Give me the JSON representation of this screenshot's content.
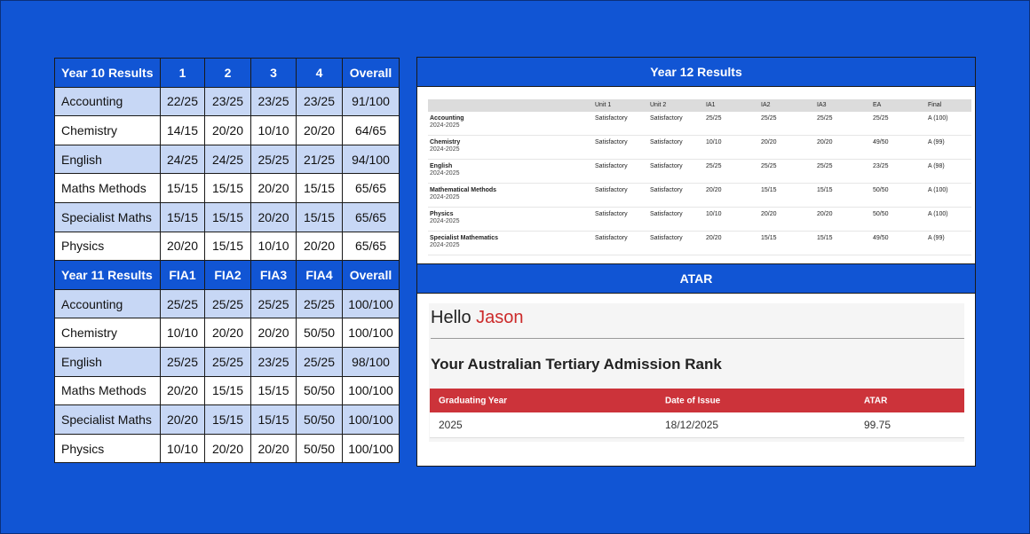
{
  "year10": {
    "header": [
      "Year 10 Results",
      "1",
      "2",
      "3",
      "4",
      "Overall"
    ],
    "rows": [
      [
        "Accounting",
        "22/25",
        "23/25",
        "23/25",
        "23/25",
        "91/100"
      ],
      [
        "Chemistry",
        "14/15",
        "20/20",
        "10/10",
        "20/20",
        "64/65"
      ],
      [
        "English",
        "24/25",
        "24/25",
        "25/25",
        "21/25",
        "94/100"
      ],
      [
        "Maths Methods",
        "15/15",
        "15/15",
        "20/20",
        "15/15",
        "65/65"
      ],
      [
        "Specialist Maths",
        "15/15",
        "15/15",
        "20/20",
        "15/15",
        "65/65"
      ],
      [
        "Physics",
        "20/20",
        "15/15",
        "10/10",
        "20/20",
        "65/65"
      ]
    ]
  },
  "year11": {
    "header": [
      "Year 11 Results",
      "FIA1",
      "FIA2",
      "FIA3",
      "FIA4",
      "Overall"
    ],
    "rows": [
      [
        "Accounting",
        "25/25",
        "25/25",
        "25/25",
        "25/25",
        "100/100"
      ],
      [
        "Chemistry",
        "10/10",
        "20/20",
        "20/20",
        "50/50",
        "100/100"
      ],
      [
        "English",
        "25/25",
        "25/25",
        "23/25",
        "25/25",
        "98/100"
      ],
      [
        "Maths Methods",
        "20/20",
        "15/15",
        "15/15",
        "50/50",
        "100/100"
      ],
      [
        "Specialist Maths",
        "20/20",
        "15/15",
        "15/15",
        "50/50",
        "100/100"
      ],
      [
        "Physics",
        "10/10",
        "20/20",
        "20/20",
        "50/50",
        "100/100"
      ]
    ]
  },
  "year12": {
    "title": "Year 12 Results",
    "columns": [
      "Unit 1",
      "Unit 2",
      "IA1",
      "IA2",
      "IA3",
      "EA",
      "Final"
    ],
    "rows": [
      {
        "subject": "Accounting",
        "year": "2024-2025",
        "values": [
          "Satisfactory",
          "Satisfactory",
          "25/25",
          "25/25",
          "25/25",
          "25/25",
          "A (100)"
        ]
      },
      {
        "subject": "Chemistry",
        "year": "2024-2025",
        "values": [
          "Satisfactory",
          "Satisfactory",
          "10/10",
          "20/20",
          "20/20",
          "49/50",
          "A (99)"
        ]
      },
      {
        "subject": "English",
        "year": "2024-2025",
        "values": [
          "Satisfactory",
          "Satisfactory",
          "25/25",
          "25/25",
          "25/25",
          "23/25",
          "A (98)"
        ]
      },
      {
        "subject": "Mathematical Methods",
        "year": "2024-2025",
        "values": [
          "Satisfactory",
          "Satisfactory",
          "20/20",
          "15/15",
          "15/15",
          "50/50",
          "A (100)"
        ]
      },
      {
        "subject": "Physics",
        "year": "2024-2025",
        "values": [
          "Satisfactory",
          "Satisfactory",
          "10/10",
          "20/20",
          "20/20",
          "50/50",
          "A (100)"
        ]
      },
      {
        "subject": "Specialist Mathematics",
        "year": "2024-2025",
        "values": [
          "Satisfactory",
          "Satisfactory",
          "20/20",
          "15/15",
          "15/15",
          "49/50",
          "A (99)"
        ]
      }
    ]
  },
  "atar": {
    "title": "ATAR",
    "hello": "Hello",
    "name": "Jason",
    "rank_title": "Your Australian Tertiary Admission Rank",
    "columns": [
      "Graduating Year",
      "Date of Issue",
      "ATAR"
    ],
    "values": [
      "2025",
      "18/12/2025",
      "99.75"
    ]
  },
  "colors": {
    "background": "#1155d4",
    "shaded_row": "#c7d7f5",
    "atar_header": "#cc333a",
    "name_accent": "#cc2a2a"
  }
}
